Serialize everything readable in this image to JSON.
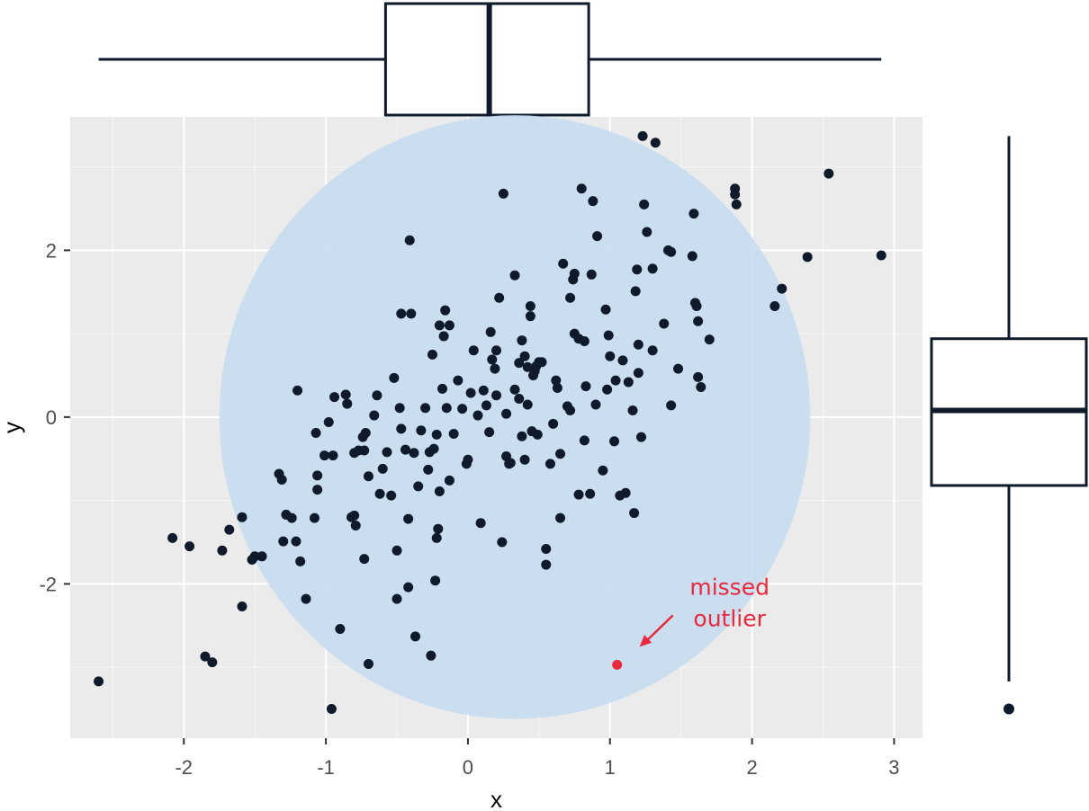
{
  "chart_data": {
    "type": "scatter",
    "title": "",
    "xlabel": "x",
    "ylabel": "y",
    "xlim": [
      -2.8,
      3.2
    ],
    "ylim": [
      -3.85,
      3.6
    ],
    "xticks": [
      -2,
      -1,
      0,
      1,
      2,
      3
    ],
    "yticks": [
      -2,
      0,
      2
    ],
    "xtick_labels": [
      "-2",
      "-1",
      "0",
      "1",
      "2",
      "3"
    ],
    "ytick_labels": [
      "-2",
      "0",
      "2"
    ],
    "grid": true,
    "circle": {
      "cx": 0.33,
      "cy": 0.0,
      "rx": 2.08,
      "ry": 3.62,
      "color": "#c6ddef"
    },
    "points": [
      [
        -2.6,
        -3.17
      ],
      [
        -2.08,
        -1.45
      ],
      [
        -1.96,
        -1.55
      ],
      [
        -1.85,
        -2.87
      ],
      [
        -1.8,
        -2.94
      ],
      [
        -1.73,
        -1.6
      ],
      [
        -1.68,
        -1.35
      ],
      [
        -1.59,
        -1.2
      ],
      [
        -1.59,
        -2.27
      ],
      [
        -1.52,
        -1.71
      ],
      [
        -1.5,
        -1.67
      ],
      [
        -1.45,
        -1.67
      ],
      [
        -1.33,
        -0.68
      ],
      [
        -1.31,
        -0.75
      ],
      [
        -1.3,
        -1.49
      ],
      [
        -1.28,
        -1.17
      ],
      [
        -1.24,
        -1.21
      ],
      [
        -1.21,
        -1.49
      ],
      [
        -1.2,
        0.32
      ],
      [
        -1.18,
        -1.73
      ],
      [
        -1.14,
        -2.18
      ],
      [
        -1.08,
        -1.21
      ],
      [
        -1.07,
        -0.19
      ],
      [
        -1.06,
        -0.87
      ],
      [
        -1.06,
        -0.7
      ],
      [
        -1.01,
        -0.46
      ],
      [
        -0.98,
        -0.06
      ],
      [
        -0.95,
        -0.46
      ],
      [
        -0.96,
        -3.5
      ],
      [
        -0.94,
        0.24
      ],
      [
        -0.9,
        -2.54
      ],
      [
        -0.86,
        0.27
      ],
      [
        -0.85,
        0.16
      ],
      [
        -0.82,
        -1.2
      ],
      [
        -0.8,
        -1.18
      ],
      [
        -0.79,
        -1.3
      ],
      [
        -0.8,
        -0.43
      ],
      [
        -0.77,
        -0.4
      ],
      [
        -0.74,
        -0.24
      ],
      [
        -0.73,
        -0.4
      ],
      [
        -0.73,
        -1.7
      ],
      [
        -0.72,
        -0.19
      ],
      [
        -0.7,
        -2.96
      ],
      [
        -0.7,
        -0.71
      ],
      [
        -0.66,
        0.02
      ],
      [
        -0.64,
        0.26
      ],
      [
        -0.62,
        -0.92
      ],
      [
        -0.6,
        -0.62
      ],
      [
        -0.57,
        -0.42
      ],
      [
        -0.54,
        -0.94
      ],
      [
        -0.52,
        0.47
      ],
      [
        -0.5,
        -1.6
      ],
      [
        -0.5,
        -2.18
      ],
      [
        -0.48,
        0.11
      ],
      [
        -0.47,
        -0.14
      ],
      [
        -0.47,
        1.24
      ],
      [
        -0.44,
        -0.39
      ],
      [
        -0.42,
        -2.04
      ],
      [
        -0.42,
        -1.22
      ],
      [
        -0.41,
        2.12
      ],
      [
        -0.4,
        1.24
      ],
      [
        -0.38,
        -0.43
      ],
      [
        -0.37,
        -2.63
      ],
      [
        -0.35,
        -0.83
      ],
      [
        -0.33,
        -0.16
      ],
      [
        -0.3,
        0.11
      ],
      [
        -0.28,
        -0.63
      ],
      [
        -0.27,
        -0.42
      ],
      [
        -0.26,
        -2.86
      ],
      [
        -0.25,
        0.75
      ],
      [
        -0.24,
        -0.38
      ],
      [
        -0.23,
        -1.96
      ],
      [
        -0.22,
        -0.21
      ],
      [
        -0.22,
        -1.45
      ],
      [
        -0.21,
        -1.34
      ],
      [
        -0.2,
        1.1
      ],
      [
        -0.2,
        -0.89
      ],
      [
        -0.18,
        0.34
      ],
      [
        -0.17,
        0.97
      ],
      [
        -0.16,
        1.28
      ],
      [
        -0.15,
        0.11
      ],
      [
        -0.13,
        1.1
      ],
      [
        -0.13,
        -0.76
      ],
      [
        -0.1,
        -0.2
      ],
      [
        -0.07,
        0.44
      ],
      [
        -0.04,
        0.1
      ],
      [
        -0.01,
        -0.56
      ],
      [
        0.0,
        -0.51
      ],
      [
        0.02,
        0.29
      ],
      [
        0.04,
        0.8
      ],
      [
        0.07,
        0.02
      ],
      [
        0.09,
        -1.27
      ],
      [
        0.11,
        0.32
      ],
      [
        0.13,
        0.14
      ],
      [
        0.15,
        -0.18
      ],
      [
        0.16,
        1.02
      ],
      [
        0.17,
        0.69
      ],
      [
        0.19,
        0.58
      ],
      [
        0.2,
        0.8
      ],
      [
        0.2,
        0.26
      ],
      [
        0.22,
        1.43
      ],
      [
        0.24,
        -1.5
      ],
      [
        0.25,
        2.68
      ],
      [
        0.27,
        -0.47
      ],
      [
        0.27,
        0.04
      ],
      [
        0.29,
        -0.56
      ],
      [
        0.3,
        -0.55
      ],
      [
        0.33,
        1.7
      ],
      [
        0.33,
        0.33
      ],
      [
        0.36,
        0.65
      ],
      [
        0.36,
        0.22
      ],
      [
        0.38,
        -0.23
      ],
      [
        0.38,
        0.92
      ],
      [
        0.4,
        0.73
      ],
      [
        0.4,
        -0.51
      ],
      [
        0.42,
        0.6
      ],
      [
        0.42,
        0.15
      ],
      [
        0.44,
        1.33
      ],
      [
        0.44,
        1.21
      ],
      [
        0.45,
        -0.17
      ],
      [
        0.46,
        0.5
      ],
      [
        0.47,
        0.55
      ],
      [
        0.48,
        0.61
      ],
      [
        0.49,
        -0.21
      ],
      [
        0.5,
        0.66
      ],
      [
        0.52,
        0.66
      ],
      [
        0.55,
        -1.58
      ],
      [
        0.55,
        -1.77
      ],
      [
        0.58,
        -0.56
      ],
      [
        0.6,
        -0.08
      ],
      [
        0.62,
        0.44
      ],
      [
        0.63,
        0.35
      ],
      [
        0.65,
        -0.44
      ],
      [
        0.65,
        -1.21
      ],
      [
        0.67,
        1.84
      ],
      [
        0.7,
        0.13
      ],
      [
        0.72,
        1.43
      ],
      [
        0.72,
        0.08
      ],
      [
        0.74,
        1.65
      ],
      [
        0.75,
        1.0
      ],
      [
        0.75,
        1.72
      ],
      [
        0.78,
        0.94
      ],
      [
        0.78,
        -0.93
      ],
      [
        0.8,
        2.74
      ],
      [
        0.82,
        0.91
      ],
      [
        0.82,
        -0.28
      ],
      [
        0.83,
        0.37
      ],
      [
        0.86,
        -0.92
      ],
      [
        0.87,
        1.71
      ],
      [
        0.88,
        2.59
      ],
      [
        0.9,
        0.15
      ],
      [
        0.91,
        2.17
      ],
      [
        0.95,
        -0.64
      ],
      [
        0.97,
        1.29
      ],
      [
        0.98,
        0.33
      ],
      [
        0.99,
        0.98
      ],
      [
        1.0,
        0.73
      ],
      [
        1.03,
        -0.29
      ],
      [
        1.04,
        0.44
      ],
      [
        1.07,
        -0.94
      ],
      [
        1.09,
        0.68
      ],
      [
        1.11,
        -0.91
      ],
      [
        1.13,
        0.42
      ],
      [
        1.16,
        0.08
      ],
      [
        1.17,
        -1.15
      ],
      [
        1.18,
        1.51
      ],
      [
        1.19,
        1.77
      ],
      [
        1.2,
        0.53
      ],
      [
        1.2,
        0.87
      ],
      [
        1.22,
        -0.24
      ],
      [
        1.23,
        3.37
      ],
      [
        1.24,
        2.55
      ],
      [
        1.26,
        2.22
      ],
      [
        1.3,
        1.78
      ],
      [
        1.3,
        0.8
      ],
      [
        1.32,
        3.29
      ],
      [
        1.38,
        1.12
      ],
      [
        1.41,
        2.0
      ],
      [
        1.43,
        1.98
      ],
      [
        1.43,
        0.14
      ],
      [
        1.48,
        0.58
      ],
      [
        1.58,
        1.93
      ],
      [
        1.59,
        2.44
      ],
      [
        1.6,
        1.37
      ],
      [
        1.61,
        1.33
      ],
      [
        1.62,
        1.15
      ],
      [
        1.62,
        0.48
      ],
      [
        1.64,
        0.36
      ],
      [
        1.7,
        0.93
      ],
      [
        1.88,
        2.74
      ],
      [
        1.88,
        2.67
      ],
      [
        1.89,
        2.55
      ],
      [
        2.16,
        1.33
      ],
      [
        2.21,
        1.54
      ],
      [
        2.39,
        1.92
      ],
      [
        2.54,
        2.92
      ],
      [
        2.91,
        1.94
      ]
    ],
    "highlight": {
      "x": 1.05,
      "y": -2.97,
      "label": [
        "missed",
        "outlier"
      ],
      "color": "#e8283c"
    },
    "boxplot_x": {
      "whisker_low": -2.6,
      "q1": -0.58,
      "median": 0.15,
      "q3": 0.85,
      "whisker_high": 2.91
    },
    "boxplot_y": {
      "whisker_low": -3.17,
      "q1": -0.82,
      "median": 0.08,
      "q3": 0.94,
      "whisker_high": 3.37,
      "outliers": [
        -3.5
      ]
    }
  }
}
